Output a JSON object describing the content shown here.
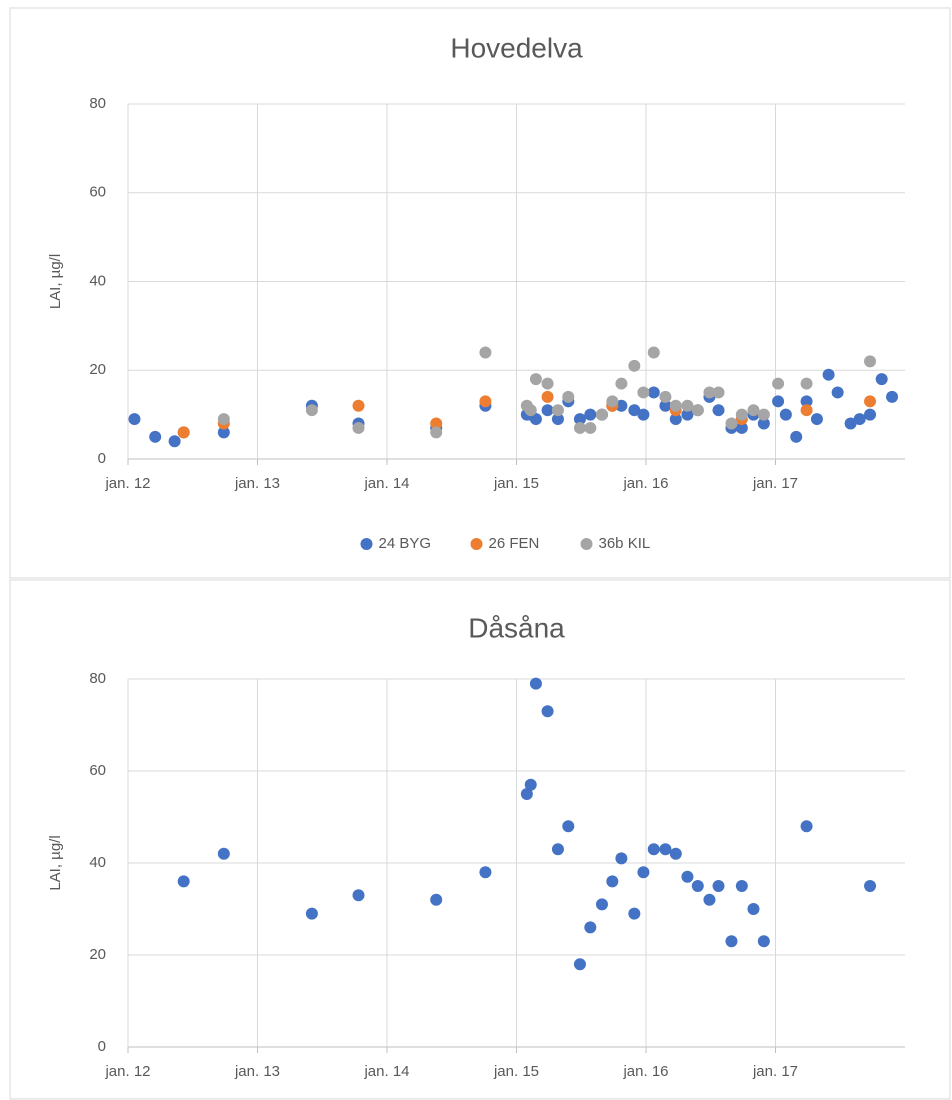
{
  "chart_data": [
    {
      "type": "scatter",
      "title": "Hovedelva",
      "ylabel": "LAI, µg/l",
      "xlim": [
        2012,
        2018
      ],
      "xticks": [
        {
          "value": 2012,
          "label": "jan. 12"
        },
        {
          "value": 2013,
          "label": "jan. 13"
        },
        {
          "value": 2014,
          "label": "jan. 14"
        },
        {
          "value": 2015,
          "label": "jan. 15"
        },
        {
          "value": 2016,
          "label": "jan. 16"
        },
        {
          "value": 2017,
          "label": "jan. 17"
        }
      ],
      "ylim": [
        0,
        80
      ],
      "yticks": [
        0,
        20,
        40,
        60,
        80
      ],
      "grid": true,
      "legend": "bottom",
      "series": [
        {
          "name": "24 BYG",
          "color": "#4472c4",
          "x": [
            2012.05,
            2012.21,
            2012.36,
            2012.43,
            2012.74,
            2013.42,
            2013.78,
            2014.38,
            2014.76,
            2015.08,
            2015.11,
            2015.15,
            2015.24,
            2015.32,
            2015.4,
            2015.49,
            2015.57,
            2015.66,
            2015.74,
            2015.81,
            2015.91,
            2015.98,
            2016.06,
            2016.15,
            2016.23,
            2016.32,
            2016.4,
            2016.49,
            2016.56,
            2016.66,
            2016.74,
            2016.83,
            2016.91,
            2017.02,
            2017.08,
            2017.16,
            2017.24,
            2017.32,
            2017.41,
            2017.48,
            2017.58,
            2017.65,
            2017.73,
            2017.82,
            2017.9
          ],
          "values": [
            9,
            5,
            4,
            6,
            6,
            12,
            8,
            7,
            12,
            10,
            10,
            9,
            11,
            9,
            13,
            9,
            10,
            10,
            12,
            12,
            11,
            10,
            15,
            12,
            9,
            10,
            11,
            14,
            11,
            7,
            7,
            10,
            8,
            13,
            10,
            5,
            13,
            9,
            19,
            15,
            8,
            9,
            10,
            18,
            14
          ]
        },
        {
          "name": "26 FEN",
          "color": "#ed7d31",
          "x": [
            2012.43,
            2012.74,
            2013.78,
            2014.38,
            2014.76,
            2015.24,
            2015.74,
            2016.23,
            2016.74,
            2017.24,
            2017.73
          ],
          "values": [
            6,
            8,
            12,
            8,
            13,
            14,
            12,
            11,
            9,
            11,
            13
          ]
        },
        {
          "name": "36b KIL",
          "color": "#a5a5a5",
          "x": [
            2012.74,
            2013.42,
            2013.78,
            2014.38,
            2014.76,
            2015.08,
            2015.11,
            2015.15,
            2015.24,
            2015.32,
            2015.4,
            2015.49,
            2015.57,
            2015.66,
            2015.74,
            2015.81,
            2015.91,
            2015.98,
            2016.06,
            2016.15,
            2016.23,
            2016.32,
            2016.4,
            2016.49,
            2016.56,
            2016.66,
            2016.74,
            2016.83,
            2016.91,
            2017.02,
            2017.24,
            2017.73
          ],
          "values": [
            9,
            11,
            7,
            6,
            24,
            12,
            11,
            18,
            17,
            11,
            14,
            7,
            7,
            10,
            13,
            17,
            21,
            15,
            24,
            14,
            12,
            12,
            11,
            15,
            15,
            8,
            10,
            11,
            10,
            17,
            17,
            22
          ]
        }
      ]
    },
    {
      "type": "scatter",
      "title": "Dåsåna",
      "ylabel": "LAI, µg/l",
      "xlim": [
        2012,
        2018
      ],
      "xticks": [
        {
          "value": 2012,
          "label": "jan. 12"
        },
        {
          "value": 2013,
          "label": "jan. 13"
        },
        {
          "value": 2014,
          "label": "jan. 14"
        },
        {
          "value": 2015,
          "label": "jan. 15"
        },
        {
          "value": 2016,
          "label": "jan. 16"
        },
        {
          "value": 2017,
          "label": "jan. 17"
        }
      ],
      "ylim": [
        0,
        80
      ],
      "yticks": [
        0,
        20,
        40,
        60,
        80
      ],
      "grid": true,
      "series": [
        {
          "color": "#4472c4",
          "x": [
            2012.43,
            2012.74,
            2013.42,
            2013.78,
            2014.38,
            2014.76,
            2015.08,
            2015.11,
            2015.15,
            2015.24,
            2015.32,
            2015.4,
            2015.49,
            2015.57,
            2015.66,
            2015.74,
            2015.81,
            2015.91,
            2015.98,
            2016.06,
            2016.15,
            2016.23,
            2016.32,
            2016.4,
            2016.49,
            2016.56,
            2016.66,
            2016.74,
            2016.83,
            2016.91,
            2017.24,
            2017.73
          ],
          "values": [
            36,
            42,
            29,
            33,
            32,
            38,
            55,
            57,
            79,
            73,
            43,
            48,
            18,
            26,
            31,
            36,
            41,
            29,
            38,
            43,
            43,
            42,
            37,
            35,
            32,
            35,
            23,
            35,
            30,
            23,
            48,
            35
          ]
        }
      ]
    }
  ]
}
